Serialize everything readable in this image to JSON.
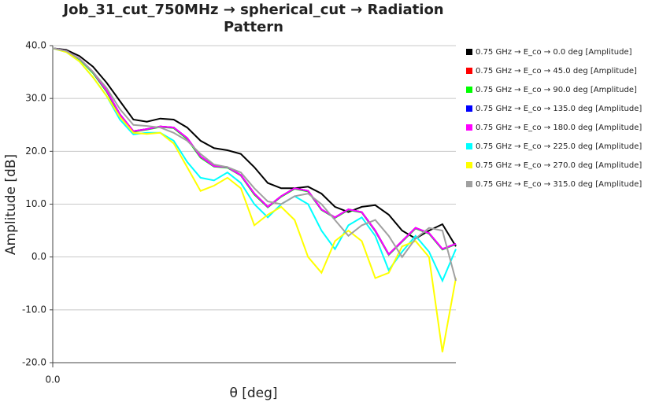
{
  "chart_data": {
    "type": "line",
    "title": "Job_31_cut_750MHz → spherical_cut → Radiation Pattern",
    "xlabel": "θ [deg]",
    "ylabel": "Amplitude [dB]",
    "x": [
      0,
      6,
      12,
      18,
      24,
      30,
      36,
      42,
      48,
      54,
      60,
      66,
      72,
      78,
      84,
      90,
      96,
      102,
      108,
      114,
      120,
      126,
      132,
      138,
      144,
      150,
      156,
      162,
      168,
      174,
      180
    ],
    "xlim": [
      0,
      180
    ],
    "xticks": [
      {
        "value": 0,
        "label": "0.0"
      }
    ],
    "ylim": [
      -20,
      40
    ],
    "yticks": [
      {
        "value": -20,
        "label": "-20.0"
      },
      {
        "value": -10,
        "label": "-10.0"
      },
      {
        "value": 0,
        "label": "0.0"
      },
      {
        "value": 10,
        "label": "10.0"
      },
      {
        "value": 20,
        "label": "20.0"
      },
      {
        "value": 30,
        "label": "30.0"
      },
      {
        "value": 40,
        "label": "40.0"
      }
    ],
    "grid": true,
    "series": [
      {
        "name": "0.75 GHz → E_co → 0.0 deg [Amplitude]",
        "color": "#000000",
        "values": [
          39.5,
          39.2,
          38,
          36,
          33,
          29.5,
          26,
          25.6,
          26.2,
          26,
          24.5,
          22,
          20.6,
          20.2,
          19.5,
          17,
          14,
          13,
          13,
          13.3,
          12,
          9.5,
          8.5,
          9.5,
          9.8,
          8,
          5,
          3.5,
          5,
          6.2,
          2
        ]
      },
      {
        "name": "0.75 GHz → E_co → 45.0 deg [Amplitude]",
        "color": "#ff0000",
        "values": [
          39.5,
          39,
          37.5,
          35,
          31.5,
          27,
          23.8,
          24.2,
          24.7,
          24.5,
          22.5,
          19,
          17.2,
          17,
          15.5,
          12,
          9.5,
          11.5,
          13,
          12.5,
          9,
          7.5,
          9,
          8.5,
          5,
          0.5,
          3,
          5.5,
          4.5,
          1.5,
          2.5
        ]
      },
      {
        "name": "0.75 GHz → E_co → 90.0 deg [Amplitude]",
        "color": "#00ff00",
        "values": [
          39.5,
          39,
          37.4,
          34.8,
          31.3,
          26.8,
          23.7,
          24.1,
          24.6,
          24.4,
          22.3,
          18.8,
          17.1,
          16.9,
          15.4,
          11.8,
          9.4,
          11.4,
          12.9,
          12.4,
          8.9,
          7.4,
          8.9,
          8.4,
          4.9,
          0.4,
          2.9,
          5.4,
          4.4,
          1.4,
          2.4
        ]
      },
      {
        "name": "0.75 GHz → E_co → 135.0 deg [Amplitude]",
        "color": "#0000ff",
        "values": [
          39.5,
          39,
          37.5,
          35,
          31.5,
          27,
          23.8,
          24.2,
          24.7,
          24.5,
          22.5,
          19,
          17.2,
          17,
          15.5,
          12,
          9.5,
          11.5,
          13,
          12.5,
          9,
          7.5,
          9,
          8.5,
          5,
          0.5,
          3,
          5.5,
          4.5,
          1.5,
          2.5
        ]
      },
      {
        "name": "0.75 GHz → E_co → 180.0 deg [Amplitude]",
        "color": "#ff00ff",
        "values": [
          39.5,
          39,
          37.5,
          35,
          31.5,
          27,
          23.8,
          24.2,
          24.7,
          24.5,
          22.5,
          19,
          17.2,
          17,
          15.5,
          12,
          9.5,
          11.5,
          13,
          12.5,
          9,
          7.5,
          9,
          8.5,
          5,
          0.5,
          3,
          5.5,
          4.5,
          1.5,
          2.5
        ]
      },
      {
        "name": "0.75 GHz → E_co → 225.0 deg [Amplitude]",
        "color": "#00ffff",
        "values": [
          39.5,
          38.8,
          37,
          34,
          30.5,
          26,
          23.2,
          23.5,
          23.5,
          22,
          18,
          15,
          14.5,
          16,
          14,
          10,
          7.5,
          10,
          11.5,
          10,
          5,
          1.5,
          6,
          7.5,
          4,
          -2.5,
          1,
          4,
          1,
          -4.5,
          1.5
        ]
      },
      {
        "name": "0.75 GHz → E_co → 270.0 deg [Amplitude]",
        "color": "#ffff00",
        "values": [
          39.5,
          38.8,
          37,
          34,
          30.5,
          26.5,
          23.5,
          23.3,
          23.5,
          21.5,
          17,
          12.5,
          13.5,
          15,
          13,
          6,
          8,
          9.5,
          7,
          0,
          -3,
          3,
          5,
          3,
          -4,
          -3,
          2,
          3,
          0,
          -18,
          -4
        ]
      },
      {
        "name": "0.75 GHz → E_co → 315.0 deg [Amplitude]",
        "color": "#a0a0a0",
        "values": [
          39.5,
          39,
          37.5,
          35,
          32,
          28,
          25,
          24.8,
          24.5,
          23.5,
          22,
          19.5,
          17.5,
          17,
          16,
          13,
          10.5,
          10,
          11.5,
          12,
          10,
          7,
          4,
          6,
          7,
          4,
          0,
          3.5,
          5.5,
          5,
          -4.5
        ]
      }
    ]
  }
}
